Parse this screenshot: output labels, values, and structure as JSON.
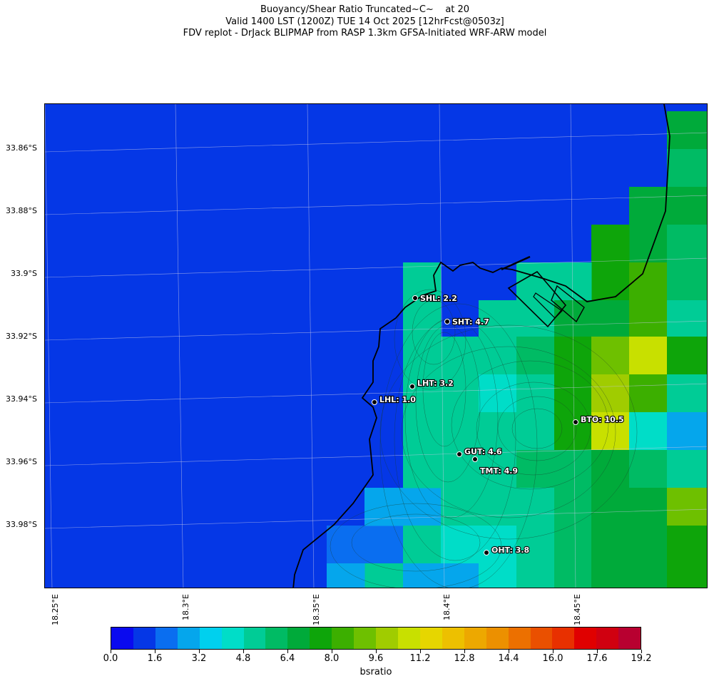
{
  "header": {
    "line1": "Buoyancy/Shear Ratio Truncated~C~    at 20",
    "line2": "Valid 1400 LST (1200Z) TUE 14 Oct 2025 [12hrFcst@0503z]",
    "line3": "FDV replot - DrJack BLIPMAP from RASP 1.3km GFSA-Initiated WRF-ARW model"
  },
  "axes": {
    "lat_labels": [
      "33.86°S",
      "33.88°S",
      "33.9°S",
      "33.92°S",
      "33.94°S",
      "33.96°S",
      "33.98°S"
    ],
    "lon_labels": [
      "18.25°E",
      "18.3°E",
      "18.35°E",
      "18.4°E",
      "18.45°E"
    ]
  },
  "stations": [
    {
      "label": "SHL: 2.2",
      "id": "SHL",
      "value": 2.2
    },
    {
      "label": "SHT: 4.7",
      "id": "SHT",
      "value": 4.7
    },
    {
      "label": "LHT: 3.2",
      "id": "LHT",
      "value": 3.2
    },
    {
      "label": "LHL: 1.0",
      "id": "LHL",
      "value": 1.0
    },
    {
      "label": "BTO: 10.5",
      "id": "BTO",
      "value": 10.5
    },
    {
      "label": "GUT: 4.6",
      "id": "GUT",
      "value": 4.6
    },
    {
      "label": "TMT: 4.9",
      "id": "TMT",
      "value": 4.9
    },
    {
      "label": "OHT: 3.8",
      "id": "OHT",
      "value": 3.8
    }
  ],
  "colorbar": {
    "title": "bsratio",
    "tick_labels": [
      "0.0",
      "1.6",
      "3.2",
      "4.8",
      "6.4",
      "8.0",
      "9.6",
      "11.2",
      "12.8",
      "14.4",
      "16.0",
      "17.6",
      "19.2"
    ],
    "colors": [
      "#0a0aef",
      "#0537e6",
      "#0a6ef0",
      "#05a6ec",
      "#00d0ee",
      "#00ddc8",
      "#00cc96",
      "#00bb64",
      "#00aa3a",
      "#0ea50a",
      "#3caf00",
      "#6ec000",
      "#a0cc00",
      "#c8e000",
      "#e6d600",
      "#edc000",
      "#eda800",
      "#ec9000",
      "#ec7000",
      "#ea5000",
      "#e83000",
      "#e00000",
      "#d00010",
      "#b80030"
    ]
  }
}
